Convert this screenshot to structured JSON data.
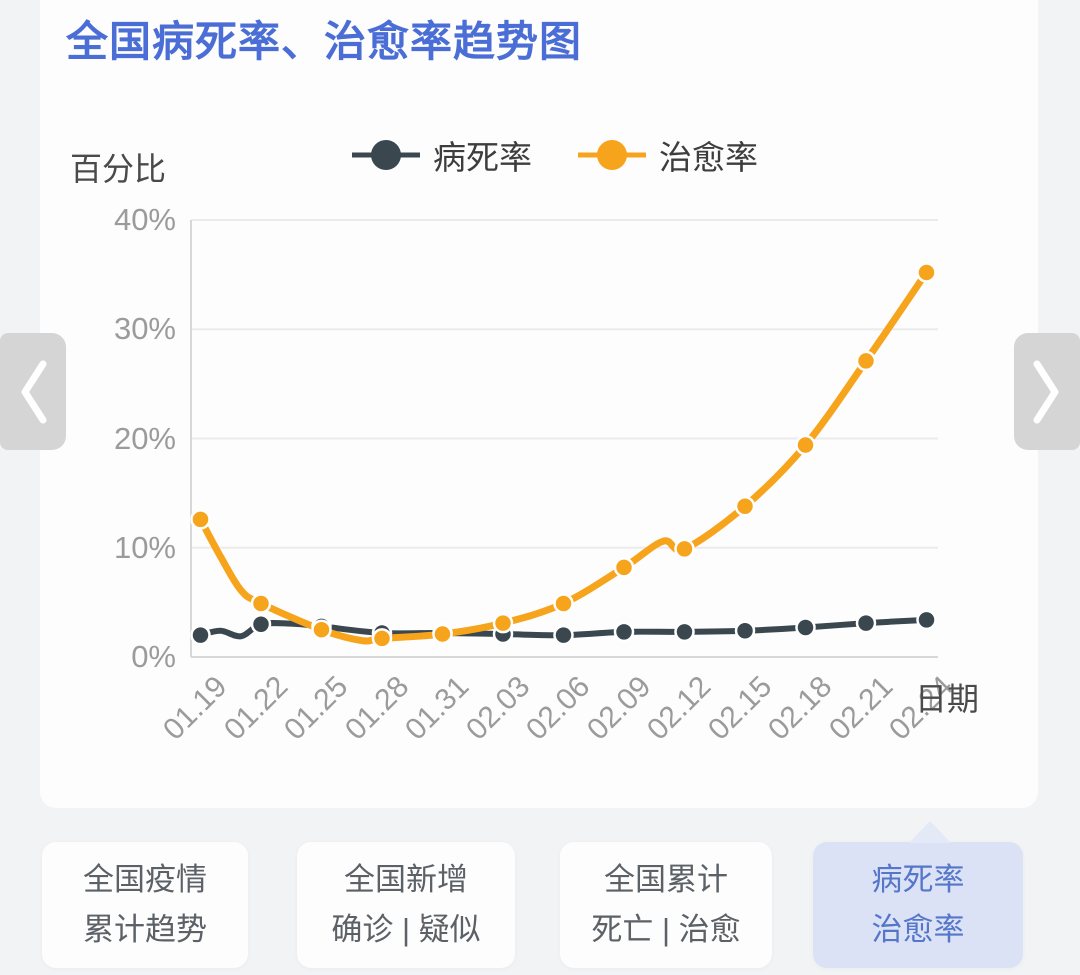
{
  "page": {
    "title": "全国病死率、治愈率趋势图"
  },
  "colors": {
    "title_accent": "#4a6ed5",
    "death_series": "#3a474f",
    "cure_series": "#f7a41d",
    "active_tab_bg": "#dbe2f6",
    "active_tab_text": "#5677c9"
  },
  "chart_data": {
    "type": "line",
    "title": "全国病死率、治愈率趋势图",
    "ylabel": "百分比",
    "xlabel": "日期",
    "ylim": [
      0,
      40
    ],
    "yticks": [
      "0%",
      "10%",
      "20%",
      "30%",
      "40%"
    ],
    "grid": true,
    "legend_position": "top",
    "categories": [
      "01.19",
      "01.22",
      "01.25",
      "01.28",
      "01.31",
      "02.03",
      "02.06",
      "02.09",
      "02.12",
      "02.15",
      "02.18",
      "02.21",
      "02.24"
    ],
    "series": [
      {
        "name": "病死率",
        "color": "#3a474f",
        "values": [
          2.0,
          3.0,
          2.8,
          2.2,
          2.2,
          2.1,
          2.0,
          2.3,
          2.3,
          2.4,
          2.7,
          3.1,
          3.4
        ],
        "intermediate_points": [
          {
            "x_index": 0.33,
            "value": 2.4
          },
          {
            "x_index": 0.67,
            "value": 1.9
          },
          {
            "x_index": 1.5,
            "value": 3.05
          }
        ]
      },
      {
        "name": "治愈率",
        "color": "#f7a41d",
        "values": [
          12.6,
          4.9,
          2.5,
          1.7,
          2.1,
          3.1,
          4.9,
          8.2,
          9.9,
          13.8,
          19.4,
          27.1,
          35.2
        ],
        "intermediate_points": [
          {
            "x_index": 0.33,
            "value": 9.2
          },
          {
            "x_index": 0.67,
            "value": 6.1
          },
          {
            "x_index": 2.67,
            "value": 1.5
          },
          {
            "x_index": 7.65,
            "value": 10.6
          }
        ]
      }
    ]
  },
  "carousel": {
    "prev_icon": "chevron-left",
    "next_icon": "chevron-right"
  },
  "tabs": {
    "items": [
      {
        "line1": "全国疫情",
        "line2": "累计趋势",
        "active": false
      },
      {
        "line1": "全国新增",
        "line2": "确诊 | 疑似",
        "active": false
      },
      {
        "line1": "全国累计",
        "line2": "死亡 | 治愈",
        "active": false
      },
      {
        "line1": "病死率",
        "line2": "治愈率",
        "active": true
      }
    ]
  }
}
